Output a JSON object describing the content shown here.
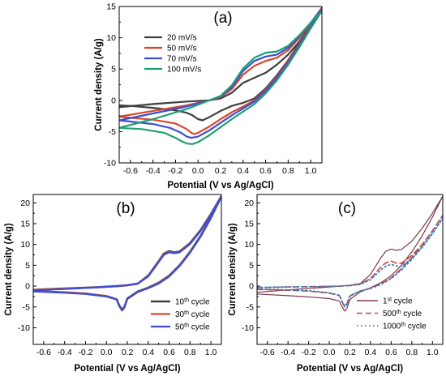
{
  "chart_data": [
    {
      "id": "a",
      "type": "line",
      "panel_label": "(a)",
      "xlabel": "Potential (V vs Ag/AgCl)",
      "ylabel": "Current density (A/g)",
      "xlim": [
        -0.7,
        1.1
      ],
      "ylim": [
        -10,
        15
      ],
      "xticks": [
        -0.6,
        -0.4,
        -0.2,
        0.0,
        0.2,
        0.4,
        0.6,
        0.8,
        1.0
      ],
      "xtick_labels": [
        "-0.6",
        "-0.4",
        "-0.2",
        "0.0",
        "0.2",
        "0.4",
        "0.6",
        "0.8",
        "1.0"
      ],
      "yticks": [
        -10,
        -5,
        0,
        5,
        10,
        15
      ],
      "ytick_labels": [
        "-10",
        "-5",
        "0",
        "5",
        "10",
        "15"
      ],
      "legend": "upper-left",
      "series": [
        {
          "name": "20 mV/s",
          "color": "#404040",
          "width": 2.2,
          "x": [
            -0.7,
            -0.4,
            -0.1,
            0.1,
            0.2,
            0.3,
            0.4,
            0.5,
            0.6,
            0.7,
            0.8,
            0.9,
            1.0,
            1.1,
            1.0,
            0.9,
            0.8,
            0.7,
            0.6,
            0.5,
            0.4,
            0.3,
            0.2,
            0.1,
            0.04,
            0.0,
            -0.05,
            -0.1,
            -0.2,
            -0.4,
            -0.6,
            -0.7
          ],
          "y": [
            -1.1,
            -0.6,
            -0.2,
            0.0,
            0.3,
            1.2,
            2.8,
            3.6,
            4.4,
            5.7,
            7.3,
            9.4,
            12.0,
            14.8,
            12.3,
            9.2,
            6.4,
            4.0,
            1.9,
            0.3,
            -0.4,
            -0.9,
            -1.7,
            -2.7,
            -3.2,
            -3.0,
            -2.4,
            -2.0,
            -1.6,
            -1.2,
            -0.9,
            -0.8
          ]
        },
        {
          "name": "50 mV/s",
          "color": "#d9472a",
          "width": 2.2,
          "x": [
            -0.7,
            -0.4,
            -0.1,
            0.1,
            0.2,
            0.3,
            0.4,
            0.5,
            0.6,
            0.7,
            0.8,
            0.9,
            1.0,
            1.1,
            1.0,
            0.9,
            0.8,
            0.7,
            0.6,
            0.5,
            0.4,
            0.3,
            0.2,
            0.1,
            0.0,
            -0.03,
            -0.06,
            -0.1,
            -0.2,
            -0.4,
            -0.6,
            -0.7
          ],
          "y": [
            -2.6,
            -1.7,
            -0.8,
            0.0,
            0.5,
            1.8,
            4.1,
            5.5,
            6.3,
            6.8,
            8.0,
            10.0,
            12.3,
            14.8,
            12.0,
            9.0,
            6.2,
            3.8,
            1.7,
            0.0,
            -1.0,
            -1.9,
            -3.0,
            -4.2,
            -5.2,
            -5.4,
            -5.2,
            -4.6,
            -3.7,
            -3.1,
            -2.8,
            -2.6
          ]
        },
        {
          "name": "70 mV/s",
          "color": "#3c4ed6",
          "width": 2.2,
          "x": [
            -0.7,
            -0.4,
            -0.1,
            0.1,
            0.2,
            0.3,
            0.4,
            0.5,
            0.6,
            0.7,
            0.8,
            0.9,
            1.0,
            1.1,
            1.0,
            0.9,
            0.8,
            0.7,
            0.6,
            0.5,
            0.4,
            0.3,
            0.2,
            0.1,
            0.0,
            -0.06,
            -0.1,
            -0.15,
            -0.25,
            -0.4,
            -0.6,
            -0.7
          ],
          "y": [
            -3.2,
            -2.1,
            -1.0,
            0.0,
            0.6,
            2.1,
            4.7,
            6.3,
            7.0,
            7.3,
            8.4,
            10.2,
            12.4,
            14.6,
            11.8,
            8.8,
            6.0,
            3.6,
            1.5,
            -0.2,
            -1.3,
            -2.4,
            -3.6,
            -4.8,
            -5.8,
            -6.0,
            -5.8,
            -5.2,
            -4.4,
            -3.8,
            -3.4,
            -3.2
          ]
        },
        {
          "name": "100 mV/s",
          "color": "#1f9e73",
          "width": 2.2,
          "x": [
            -0.7,
            -0.4,
            -0.1,
            0.1,
            0.2,
            0.3,
            0.4,
            0.5,
            0.6,
            0.7,
            0.8,
            0.9,
            1.0,
            1.1,
            1.0,
            0.9,
            0.8,
            0.7,
            0.6,
            0.5,
            0.4,
            0.3,
            0.2,
            0.1,
            0.0,
            -0.05,
            -0.1,
            -0.15,
            -0.2,
            -0.3,
            -0.5,
            -0.7
          ],
          "y": [
            -4.4,
            -3.0,
            -1.4,
            0.0,
            0.7,
            2.4,
            5.1,
            6.8,
            7.6,
            7.8,
            8.7,
            10.4,
            12.4,
            14.3,
            11.5,
            8.5,
            5.7,
            3.2,
            1.1,
            -0.6,
            -1.8,
            -3.0,
            -4.3,
            -5.6,
            -6.7,
            -7.0,
            -6.9,
            -6.5,
            -6.0,
            -5.2,
            -4.6,
            -4.4
          ]
        }
      ]
    },
    {
      "id": "b",
      "type": "line",
      "panel_label": "(b)",
      "xlabel": "Potential (V vs Ag/AgCl)",
      "ylabel": "Current density (A/g)",
      "xlim": [
        -0.7,
        1.1
      ],
      "ylim": [
        -14,
        22
      ],
      "xticks": [
        -0.6,
        -0.4,
        -0.2,
        0.0,
        0.2,
        0.4,
        0.6,
        0.8,
        1.0
      ],
      "xtick_labels": [
        "-0.6",
        "-0.4",
        "-0.2",
        "0.0",
        "0.2",
        "0.4",
        "0.6",
        "0.8",
        "1.0"
      ],
      "yticks": [
        -10,
        -5,
        0,
        5,
        10,
        15,
        20
      ],
      "ytick_labels": [
        "-10",
        "-5",
        "0",
        "5",
        "10",
        "15",
        "20"
      ],
      "legend": "lower-right",
      "series": [
        {
          "name": "10",
          "superscript": "th",
          "suffix": " cycle",
          "color": "#404040",
          "width": 2.6,
          "x": [
            -0.7,
            -0.4,
            -0.1,
            0.1,
            0.2,
            0.3,
            0.4,
            0.5,
            0.55,
            0.6,
            0.65,
            0.7,
            0.8,
            0.9,
            1.0,
            1.1,
            1.0,
            0.9,
            0.8,
            0.7,
            0.6,
            0.5,
            0.4,
            0.3,
            0.2,
            0.17,
            0.15,
            0.12,
            0.1,
            0.0,
            -0.2,
            -0.4,
            -0.7
          ],
          "y": [
            -0.9,
            -0.6,
            -0.3,
            0.0,
            0.2,
            0.6,
            2.5,
            6.0,
            7.8,
            8.4,
            8.1,
            8.3,
            10.3,
            13.4,
            17.3,
            21.6,
            16.5,
            12.0,
            8.2,
            5.0,
            2.5,
            0.8,
            -0.4,
            -1.3,
            -3.0,
            -5.2,
            -5.8,
            -4.6,
            -3.2,
            -2.4,
            -1.8,
            -1.5,
            -1.2
          ]
        },
        {
          "name": "30",
          "superscript": "th",
          "suffix": " cycle",
          "color": "#d9472a",
          "width": 2.2,
          "x": [
            -0.7,
            -0.4,
            -0.1,
            0.1,
            0.2,
            0.3,
            0.4,
            0.5,
            0.55,
            0.6,
            0.65,
            0.7,
            0.8,
            0.9,
            1.0,
            1.1,
            1.0,
            0.9,
            0.8,
            0.7,
            0.6,
            0.5,
            0.4,
            0.3,
            0.2,
            0.17,
            0.15,
            0.12,
            0.1,
            0.0,
            -0.2,
            -0.4,
            -0.7
          ],
          "y": [
            -0.9,
            -0.6,
            -0.3,
            0.0,
            0.2,
            0.6,
            2.4,
            5.9,
            7.6,
            8.2,
            8.0,
            8.2,
            10.2,
            13.3,
            17.2,
            21.5,
            16.4,
            11.9,
            8.1,
            4.9,
            2.4,
            0.7,
            -0.5,
            -1.4,
            -3.1,
            -5.1,
            -5.7,
            -4.5,
            -3.2,
            -2.4,
            -1.8,
            -1.5,
            -1.2
          ]
        },
        {
          "name": "50",
          "superscript": "th",
          "suffix": " cycle",
          "color": "#3c4ed6",
          "width": 2.2,
          "x": [
            -0.7,
            -0.4,
            -0.1,
            0.1,
            0.2,
            0.3,
            0.4,
            0.5,
            0.55,
            0.6,
            0.65,
            0.7,
            0.8,
            0.9,
            1.0,
            1.1,
            1.0,
            0.9,
            0.8,
            0.7,
            0.6,
            0.5,
            0.4,
            0.3,
            0.2,
            0.17,
            0.15,
            0.12,
            0.1,
            0.0,
            -0.2,
            -0.4,
            -0.7
          ],
          "y": [
            -1.0,
            -0.7,
            -0.3,
            0.0,
            0.2,
            0.6,
            2.3,
            5.8,
            7.5,
            8.1,
            7.9,
            8.1,
            10.1,
            13.2,
            17.1,
            21.4,
            16.3,
            11.8,
            8.0,
            4.8,
            2.3,
            0.6,
            -0.5,
            -1.4,
            -3.1,
            -5.0,
            -5.6,
            -4.5,
            -3.2,
            -2.5,
            -1.9,
            -1.6,
            -1.3
          ]
        }
      ]
    },
    {
      "id": "c",
      "type": "line",
      "panel_label": "(c)",
      "xlabel": "Potential (V vs Ag/AgCl)",
      "ylabel": "Current density (A/g)",
      "xlim": [
        -0.7,
        1.1
      ],
      "ylim": [
        -14,
        22
      ],
      "xticks": [
        -0.6,
        -0.4,
        -0.2,
        0.0,
        0.2,
        0.4,
        0.6,
        0.8,
        1.0
      ],
      "xtick_labels": [
        "-0.6",
        "-0.4",
        "-0.2",
        "0.0",
        "0.2",
        "0.4",
        "0.6",
        "0.8",
        "1.0"
      ],
      "yticks": [
        -10,
        -5,
        0,
        5,
        10,
        15,
        20
      ],
      "ytick_labels": [
        "-10",
        "-5",
        "0",
        "5",
        "10",
        "15",
        "20"
      ],
      "legend": "lower-right",
      "series": [
        {
          "name": "1",
          "superscript": "st",
          "suffix": " cycle",
          "color": "#7a3a4a",
          "width": 1.2,
          "dash": "",
          "x": [
            -0.7,
            -0.4,
            -0.1,
            0.1,
            0.2,
            0.3,
            0.4,
            0.5,
            0.55,
            0.6,
            0.65,
            0.7,
            0.8,
            0.9,
            1.0,
            1.1,
            1.0,
            0.9,
            0.8,
            0.7,
            0.6,
            0.5,
            0.4,
            0.3,
            0.2,
            0.17,
            0.15,
            0.12,
            0.1,
            0.0,
            -0.2,
            -0.4,
            -0.7
          ],
          "y": [
            -1.5,
            -0.9,
            -0.4,
            0.0,
            0.2,
            0.6,
            2.8,
            6.8,
            8.4,
            8.9,
            8.6,
            8.8,
            10.8,
            13.9,
            17.5,
            21.6,
            16.6,
            12.1,
            8.2,
            5.0,
            2.5,
            0.8,
            -0.4,
            -1.4,
            -3.2,
            -5.4,
            -6.0,
            -4.8,
            -3.6,
            -3.0,
            -2.6,
            -2.3,
            -1.9
          ]
        },
        {
          "name": "500",
          "superscript": "th",
          "suffix": " cycle",
          "color": "#c8463f",
          "width": 1.6,
          "dash": "7,4",
          "x": [
            -0.7,
            -0.4,
            -0.1,
            0.1,
            0.2,
            0.3,
            0.4,
            0.5,
            0.55,
            0.6,
            0.65,
            0.7,
            0.8,
            0.9,
            1.0,
            1.1,
            1.0,
            0.9,
            0.8,
            0.7,
            0.6,
            0.5,
            0.4,
            0.3,
            0.2,
            0.17,
            0.15,
            0.12,
            0.1,
            0.0,
            -0.2,
            -0.4,
            -0.7
          ],
          "y": [
            -0.4,
            -0.2,
            -0.1,
            0.0,
            0.1,
            0.5,
            1.8,
            4.6,
            5.6,
            6.0,
            5.5,
            5.5,
            7.3,
            10.0,
            13.3,
            17.0,
            13.3,
            9.9,
            6.8,
            4.2,
            2.0,
            0.5,
            -0.5,
            -1.2,
            -2.4,
            -4.4,
            -5.1,
            -3.5,
            -2.3,
            -1.7,
            -1.2,
            -1.0,
            -0.8
          ]
        },
        {
          "name": "1000",
          "superscript": "th",
          "suffix": " cycle",
          "color": "#2b82c9",
          "width": 1.8,
          "dash": "1.5,3.5",
          "x": [
            -0.7,
            -0.4,
            -0.1,
            0.1,
            0.2,
            0.3,
            0.4,
            0.5,
            0.55,
            0.6,
            0.65,
            0.7,
            0.8,
            0.9,
            1.0,
            1.1,
            1.0,
            0.9,
            0.8,
            0.7,
            0.6,
            0.5,
            0.4,
            0.3,
            0.2,
            0.17,
            0.15,
            0.12,
            0.1,
            0.0,
            -0.2,
            -0.4,
            -0.7
          ],
          "y": [
            -0.3,
            -0.2,
            -0.1,
            0.0,
            0.1,
            0.4,
            1.5,
            3.9,
            4.8,
            5.2,
            4.8,
            4.8,
            6.6,
            9.3,
            12.6,
            16.3,
            12.7,
            9.4,
            6.4,
            3.9,
            1.8,
            0.4,
            -0.6,
            -1.2,
            -2.3,
            -4.2,
            -4.9,
            -3.4,
            -2.2,
            -1.6,
            -1.1,
            -0.9,
            -0.7
          ]
        }
      ]
    }
  ]
}
